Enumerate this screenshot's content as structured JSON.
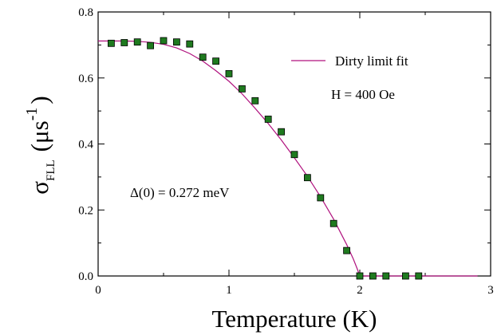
{
  "chart_data": {
    "type": "scatter",
    "xlabel": "Temperature (K)",
    "ylabel": {
      "symbol": "σ",
      "subscript": "FLL",
      "unit_open": "(μs",
      "exponent": "-1",
      "unit_close": ")"
    },
    "xlim": [
      0,
      3
    ],
    "ylim": [
      0,
      0.8
    ],
    "x_ticks": [
      0,
      1,
      2,
      3
    ],
    "y_ticks": [
      0.0,
      0.2,
      0.4,
      0.6,
      0.8
    ],
    "x_tick_labels": [
      "0",
      "1",
      "2",
      "3"
    ],
    "y_tick_labels": [
      "0.0",
      "0.2",
      "0.4",
      "0.6",
      "0.8"
    ],
    "grid": false,
    "legend": {
      "placement": "top-right",
      "entries": [
        {
          "label": "Dirty limit fit",
          "color": "#b0127e"
        }
      ]
    },
    "annotations": {
      "field": "H = 400 Oe",
      "gap": "Δ(0) = 0.272 meV"
    },
    "series": [
      {
        "kind": "points",
        "marker": "square",
        "fill": "#1f7a1f",
        "stroke": "#000000",
        "x": [
          0.1,
          0.2,
          0.3,
          0.4,
          0.5,
          0.6,
          0.7,
          0.8,
          0.9,
          1.0,
          1.1,
          1.2,
          1.3,
          1.4,
          1.5,
          1.6,
          1.7,
          1.8,
          1.9,
          2.0,
          2.1,
          2.2,
          2.35,
          2.45
        ],
        "y": [
          0.705,
          0.707,
          0.709,
          0.698,
          0.713,
          0.709,
          0.703,
          0.663,
          0.651,
          0.613,
          0.567,
          0.531,
          0.475,
          0.437,
          0.368,
          0.298,
          0.237,
          0.159,
          0.077,
          0.0,
          0.0,
          0.0,
          0.0,
          0.0
        ]
      },
      {
        "name": "Dirty limit fit",
        "kind": "line",
        "color": "#b0127e",
        "x": [
          0.0,
          0.1,
          0.2,
          0.3,
          0.4,
          0.5,
          0.6,
          0.7,
          0.8,
          0.9,
          1.0,
          1.1,
          1.2,
          1.3,
          1.4,
          1.5,
          1.6,
          1.7,
          1.8,
          1.9,
          1.95,
          1.98,
          2.0,
          2.5,
          2.9
        ],
        "y": [
          0.712,
          0.712,
          0.712,
          0.711,
          0.708,
          0.702,
          0.691,
          0.674,
          0.651,
          0.622,
          0.59,
          0.552,
          0.508,
          0.462,
          0.412,
          0.358,
          0.302,
          0.24,
          0.172,
          0.095,
          0.052,
          0.022,
          0.0,
          0.0,
          0.0
        ]
      }
    ]
  }
}
